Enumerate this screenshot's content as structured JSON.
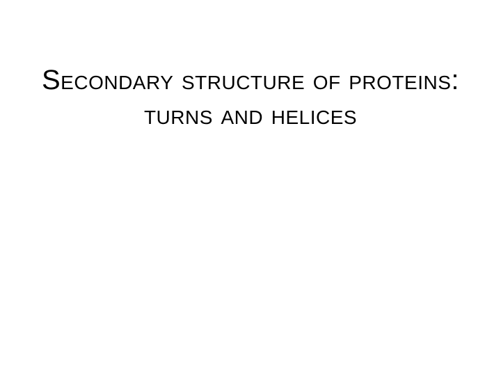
{
  "slide": {
    "title": "Secondary structure of proteins: turns and helices",
    "title_fontsize": 40,
    "title_color": "#000000",
    "background_color": "#ffffff",
    "font_variant": "small-caps",
    "text_align": "center",
    "padding_top": 90
  }
}
